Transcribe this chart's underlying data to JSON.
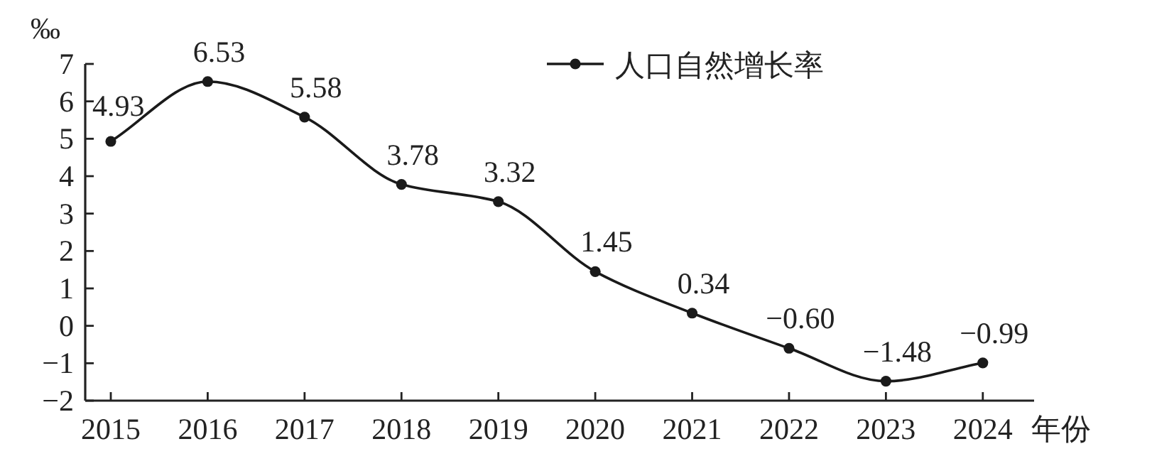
{
  "chart_data": {
    "type": "line",
    "ylabel": "‰",
    "xlabel": "年份",
    "categories": [
      "2015",
      "2016",
      "2017",
      "2018",
      "2019",
      "2020",
      "2021",
      "2022",
      "2023",
      "2024"
    ],
    "series": [
      {
        "name": "人口自然增长率",
        "color": "#1a1a1a",
        "values": [
          4.93,
          6.53,
          5.58,
          3.78,
          3.32,
          1.45,
          0.34,
          -0.6,
          -1.48,
          -0.99
        ],
        "value_labels": [
          "4.93",
          "6.53",
          "5.58",
          "3.78",
          "3.32",
          "1.45",
          "0.34",
          "−0.60",
          "−1.48",
          "−0.99"
        ]
      }
    ],
    "ylim": [
      -2,
      7
    ],
    "yticks": [
      -2,
      -1,
      0,
      1,
      2,
      3,
      4,
      5,
      6,
      7
    ],
    "legend": "top right",
    "marker": "circle",
    "line_style": "solid",
    "grid": false
  }
}
